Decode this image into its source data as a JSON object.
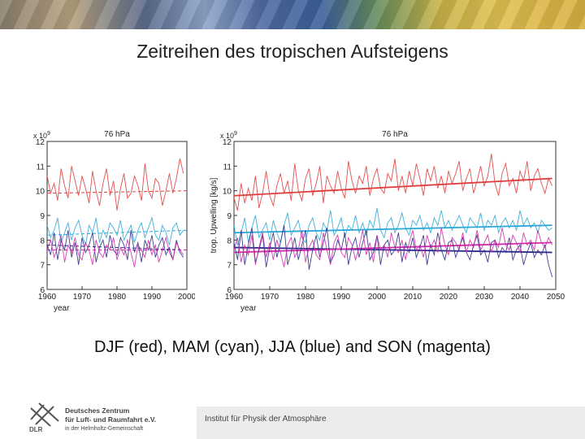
{
  "slide": {
    "title": "Zeitreihen des tropischen Aufsteigens",
    "caption": "DJF (red), MAM (cyan), JJA (blue) and SON (magenta)",
    "footer_institute": "Institut für Physik der Atmosphäre",
    "logo": {
      "acronym": "DLR",
      "line1": "Deutsches Zentrum",
      "line2": "für Luft- und Raumfahrt e.V.",
      "line3": "in der Helmholtz-Gemeinschaft"
    }
  },
  "colors": {
    "DJF": "#e03c3c",
    "MAM": "#2aa8d8",
    "JJA": "#2a2a8a",
    "SON": "#d42aa8"
  },
  "chart_data": [
    {
      "type": "line",
      "title": "76 hPa",
      "xlabel": "year",
      "ylabel": "trop. Upwelling [kg/s]",
      "y_exponent": "x 10^9",
      "xlim": [
        1960,
        2000
      ],
      "ylim": [
        6,
        12
      ],
      "xticks": [
        1960,
        1970,
        1980,
        1990,
        2000
      ],
      "yticks": [
        6,
        7,
        8,
        9,
        10,
        11,
        12
      ],
      "x": [
        1960,
        1961,
        1962,
        1963,
        1964,
        1965,
        1966,
        1967,
        1968,
        1969,
        1970,
        1971,
        1972,
        1973,
        1974,
        1975,
        1976,
        1977,
        1978,
        1979,
        1980,
        1981,
        1982,
        1983,
        1984,
        1985,
        1986,
        1987,
        1988,
        1989,
        1990,
        1991,
        1992,
        1993,
        1994,
        1995,
        1996,
        1997,
        1998,
        1999
      ],
      "series": [
        {
          "key": "DJF",
          "values": [
            10.6,
            9.9,
            10.3,
            9.6,
            10.9,
            10.2,
            9.7,
            11.0,
            10.4,
            9.8,
            10.6,
            10.1,
            9.5,
            10.8,
            10.0,
            9.4,
            10.3,
            10.9,
            9.8,
            10.4,
            9.2,
            10.1,
            10.7,
            9.7,
            9.9,
            10.6,
            10.2,
            9.6,
            11.1,
            10.0,
            9.7,
            10.5,
            10.3,
            9.4,
            10.0,
            10.7,
            9.9,
            10.5,
            11.3,
            10.7
          ]
        },
        {
          "key": "MAM",
          "values": [
            8.6,
            8.1,
            8.4,
            8.9,
            7.9,
            8.3,
            8.7,
            8.0,
            8.5,
            8.8,
            8.2,
            7.8,
            8.6,
            8.3,
            8.9,
            7.9,
            8.4,
            8.1,
            8.7,
            8.5,
            8.2,
            8.8,
            8.0,
            8.3,
            8.6,
            7.9,
            8.4,
            8.7,
            8.1,
            8.5,
            8.9,
            8.2,
            8.0,
            8.6,
            8.3,
            7.8,
            8.5,
            8.7,
            8.2,
            8.4
          ]
        },
        {
          "key": "JJA",
          "values": [
            7.8,
            7.4,
            8.3,
            7.2,
            8.0,
            7.6,
            8.4,
            7.3,
            7.9,
            7.0,
            8.1,
            7.5,
            7.8,
            8.3,
            7.1,
            7.7,
            8.0,
            7.3,
            8.2,
            7.6,
            7.4,
            8.1,
            7.8,
            7.2,
            8.4,
            7.5,
            7.9,
            7.1,
            8.0,
            7.6,
            8.2,
            7.3,
            7.8,
            8.1,
            7.4,
            7.7,
            7.2,
            8.0,
            7.5,
            7.3
          ]
        },
        {
          "key": "SON",
          "values": [
            7.6,
            8.0,
            7.3,
            7.7,
            8.2,
            7.1,
            7.8,
            7.5,
            8.1,
            7.4,
            7.2,
            7.9,
            7.6,
            7.0,
            8.0,
            7.5,
            7.3,
            7.8,
            7.6,
            8.1,
            7.2,
            7.7,
            7.4,
            8.0,
            7.5,
            6.9,
            7.8,
            7.6,
            7.3,
            8.0,
            7.4,
            7.8,
            7.1,
            7.6,
            8.1,
            7.5,
            7.2,
            7.9,
            7.6,
            7.4
          ]
        }
      ],
      "trends": [
        {
          "key": "DJF",
          "from": [
            1960,
            9.9
          ],
          "to": [
            2000,
            10.0
          ]
        },
        {
          "key": "MAM",
          "from": [
            1960,
            8.2
          ],
          "to": [
            2000,
            8.4
          ]
        },
        {
          "key": "JJA",
          "from": [
            1960,
            7.8
          ],
          "to": [
            2000,
            7.6
          ]
        },
        {
          "key": "SON",
          "from": [
            1960,
            7.6
          ],
          "to": [
            2000,
            7.6
          ]
        }
      ]
    },
    {
      "type": "line",
      "title": "76 hPa",
      "xlabel": "year",
      "ylabel": "trop. Upwelling [kg/s]",
      "y_exponent": "x 10^9",
      "xlim": [
        1960,
        2050
      ],
      "ylim": [
        6,
        12
      ],
      "xticks": [
        1960,
        1970,
        1980,
        1990,
        2000,
        2010,
        2020,
        2030,
        2040,
        2050
      ],
      "yticks": [
        6,
        7,
        8,
        9,
        10,
        11,
        12
      ],
      "x_start": 1960,
      "x_step": 1,
      "series": [
        {
          "key": "DJF",
          "values": [
            9.7,
            9.2,
            10.3,
            9.5,
            10.1,
            9.6,
            10.6,
            9.3,
            9.9,
            10.8,
            9.8,
            9.4,
            10.2,
            10.7,
            9.9,
            10.4,
            9.6,
            11.1,
            10.0,
            9.6,
            10.5,
            10.9,
            9.8,
            10.3,
            11.0,
            9.5,
            10.6,
            10.2,
            9.9,
            10.8,
            10.1,
            9.7,
            11.2,
            10.4,
            9.9,
            10.6,
            10.3,
            11.0,
            9.8,
            10.5,
            10.9,
            10.1,
            9.9,
            10.7,
            10.4,
            11.3,
            10.0,
            10.6,
            9.9,
            10.8,
            10.2,
            11.1,
            10.5,
            9.8,
            10.9,
            10.4,
            11.0,
            10.1,
            10.6,
            9.9,
            10.8,
            10.3,
            10.7,
            11.2,
            10.0,
            10.5,
            10.9,
            9.9,
            10.4,
            11.0,
            10.2,
            10.6,
            11.5,
            10.3,
            9.8,
            10.7,
            11.1,
            10.2,
            10.5,
            9.9,
            10.8,
            10.4,
            11.2,
            10.0,
            10.6,
            10.9,
            10.3,
            9.9,
            10.5,
            10.2
          ]
        },
        {
          "key": "MAM",
          "values": [
            8.6,
            7.8,
            8.3,
            8.9,
            7.9,
            8.5,
            9.0,
            8.1,
            8.4,
            8.7,
            8.0,
            8.8,
            8.3,
            7.9,
            8.6,
            9.1,
            8.2,
            8.5,
            8.8,
            8.1,
            7.9,
            8.6,
            8.9,
            8.3,
            8.0,
            8.7,
            8.4,
            9.2,
            8.2,
            8.5,
            8.9,
            8.1,
            8.6,
            8.4,
            9.0,
            8.3,
            8.7,
            8.2,
            8.8,
            8.5,
            9.3,
            8.4,
            8.1,
            8.7,
            8.9,
            8.3,
            8.6,
            9.1,
            8.5,
            8.2,
            8.8,
            8.6,
            9.0,
            8.4,
            8.7,
            8.3,
            8.9,
            8.6,
            9.2,
            8.5,
            8.8,
            8.4,
            8.7,
            9.0,
            8.6,
            8.3,
            8.9,
            8.7,
            8.5,
            9.1,
            8.4,
            8.8,
            8.6,
            9.0,
            8.3,
            8.7,
            8.9,
            8.5,
            8.8,
            8.4,
            9.2,
            8.6,
            8.9,
            8.5,
            8.7,
            8.3,
            8.8,
            8.6,
            8.4,
            8.5
          ]
        },
        {
          "key": "JJA",
          "values": [
            7.9,
            7.2,
            8.4,
            7.0,
            7.8,
            8.5,
            7.1,
            7.6,
            8.2,
            6.9,
            7.7,
            8.3,
            7.3,
            7.9,
            8.6,
            7.0,
            7.5,
            8.1,
            7.2,
            7.8,
            8.4,
            6.8,
            7.6,
            8.2,
            7.3,
            7.9,
            8.5,
            7.1,
            7.4,
            8.0,
            7.6,
            8.3,
            7.0,
            7.7,
            8.1,
            7.3,
            7.9,
            8.4,
            7.2,
            7.5,
            8.2,
            7.0,
            7.8,
            8.0,
            7.4,
            7.6,
            8.3,
            7.1,
            7.9,
            7.5,
            8.1,
            7.3,
            7.7,
            8.2,
            7.0,
            7.8,
            7.4,
            8.3,
            7.6,
            7.2,
            7.9,
            8.0,
            7.3,
            7.7,
            8.1,
            7.5,
            7.2,
            7.8,
            8.2,
            7.4,
            7.6,
            7.1,
            7.9,
            8.0,
            7.3,
            7.7,
            7.5,
            8.1,
            7.2,
            7.6,
            7.8,
            7.0,
            7.5,
            7.9,
            7.3,
            7.6,
            7.4,
            7.8,
            7.0,
            6.5
          ]
        },
        {
          "key": "SON",
          "values": [
            7.6,
            8.1,
            7.1,
            7.8,
            7.4,
            8.2,
            7.0,
            7.7,
            8.3,
            7.3,
            7.9,
            7.2,
            8.0,
            7.5,
            6.9,
            7.8,
            8.1,
            7.3,
            7.6,
            8.4,
            7.1,
            7.7,
            8.0,
            7.4,
            7.2,
            8.3,
            7.6,
            7.0,
            7.9,
            8.2,
            7.5,
            7.3,
            8.1,
            7.8,
            7.2,
            7.7,
            8.4,
            7.4,
            7.9,
            7.1,
            8.2,
            7.6,
            7.8,
            7.3,
            8.3,
            7.7,
            7.5,
            8.0,
            7.2,
            7.9,
            8.4,
            7.6,
            7.8,
            7.3,
            8.2,
            7.7,
            8.0,
            7.5,
            8.5,
            7.8,
            7.4,
            8.1,
            7.9,
            7.6,
            8.3,
            7.5,
            8.0,
            7.7,
            8.4,
            7.6,
            7.9,
            8.2,
            7.5,
            8.0,
            7.7,
            8.5,
            7.8,
            7.6,
            8.2,
            7.9,
            7.5,
            8.3,
            7.8,
            8.0,
            7.6,
            8.4,
            7.9,
            7.7,
            8.1,
            7.8
          ]
        }
      ],
      "trends": [
        {
          "key": "DJF",
          "from": [
            1960,
            9.8
          ],
          "to": [
            2049,
            10.5
          ]
        },
        {
          "key": "MAM",
          "from": [
            1960,
            8.3
          ],
          "to": [
            2049,
            8.6
          ]
        },
        {
          "key": "JJA",
          "from": [
            1960,
            7.7
          ],
          "to": [
            2049,
            7.5
          ]
        },
        {
          "key": "SON",
          "from": [
            1960,
            7.5
          ],
          "to": [
            2049,
            7.9
          ]
        }
      ]
    }
  ]
}
